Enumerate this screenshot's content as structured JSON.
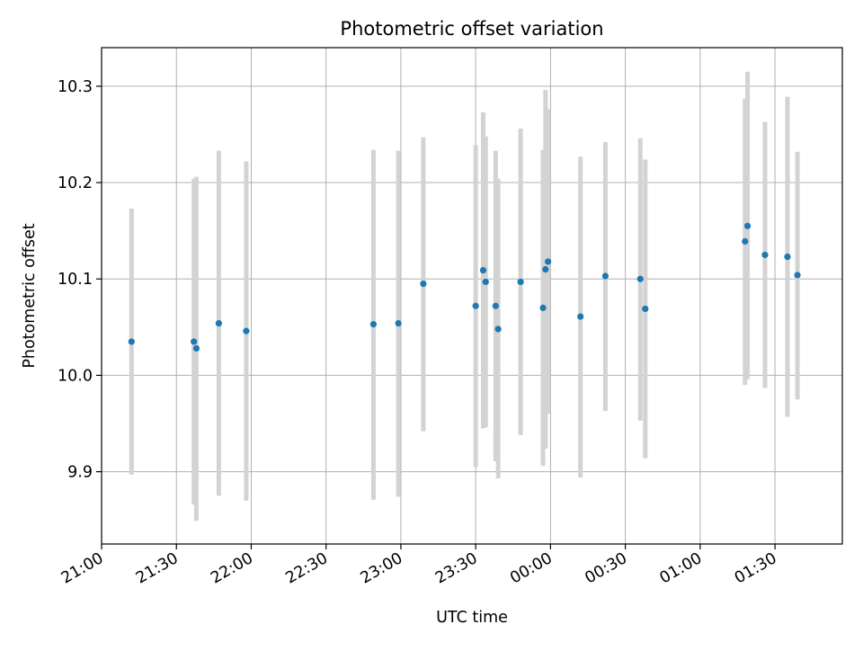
{
  "chart_data": {
    "type": "scatter",
    "title": "Photometric offset variation",
    "xlabel": "UTC time",
    "ylabel": "Photometric offset",
    "x_axis": {
      "start": "21:00",
      "end": "01:57",
      "tick_labels": [
        "21:00",
        "21:30",
        "22:00",
        "22:30",
        "23:00",
        "23:30",
        "00:00",
        "00:30",
        "01:00",
        "01:30"
      ]
    },
    "y_axis": {
      "min": 9.825,
      "max": 10.34,
      "tick_labels": [
        "9.9",
        "10.0",
        "10.1",
        "10.2",
        "10.3"
      ]
    },
    "grid": true,
    "colors": {
      "point": "#1f77b4",
      "errorbar": "#d3d3d3",
      "grid": "#b0b0b0"
    },
    "series": [
      {
        "points": [
          {
            "x": "21:12",
            "y": 10.035,
            "low": 9.897,
            "high": 10.173
          },
          {
            "x": "21:37",
            "y": 10.035,
            "low": 9.866,
            "high": 10.204
          },
          {
            "x": "21:38",
            "y": 10.028,
            "low": 9.849,
            "high": 10.206
          },
          {
            "x": "21:47",
            "y": 10.054,
            "low": 9.875,
            "high": 10.233
          },
          {
            "x": "21:58",
            "y": 10.046,
            "low": 9.87,
            "high": 10.222
          },
          {
            "x": "22:49",
            "y": 10.053,
            "low": 9.871,
            "high": 10.234
          },
          {
            "x": "22:59",
            "y": 10.054,
            "low": 9.874,
            "high": 10.233
          },
          {
            "x": "23:09",
            "y": 10.095,
            "low": 9.942,
            "high": 10.247
          },
          {
            "x": "23:30",
            "y": 10.072,
            "low": 9.905,
            "high": 10.239
          },
          {
            "x": "23:33",
            "y": 10.109,
            "low": 9.945,
            "high": 10.273
          },
          {
            "x": "23:34",
            "y": 10.097,
            "low": 9.946,
            "high": 10.248
          },
          {
            "x": "23:38",
            "y": 10.072,
            "low": 9.911,
            "high": 10.233
          },
          {
            "x": "23:39",
            "y": 10.048,
            "low": 9.893,
            "high": 10.204
          },
          {
            "x": "23:48",
            "y": 10.097,
            "low": 9.938,
            "high": 10.256
          },
          {
            "x": "23:57",
            "y": 10.07,
            "low": 9.906,
            "high": 10.234
          },
          {
            "x": "23:58",
            "y": 10.11,
            "low": 9.924,
            "high": 10.296
          },
          {
            "x": "23:59",
            "y": 10.118,
            "low": 9.96,
            "high": 10.276
          },
          {
            "x": "00:12",
            "y": 10.061,
            "low": 9.894,
            "high": 10.227
          },
          {
            "x": "00:22",
            "y": 10.103,
            "low": 9.963,
            "high": 10.242
          },
          {
            "x": "00:36",
            "y": 10.1,
            "low": 9.953,
            "high": 10.246
          },
          {
            "x": "00:38",
            "y": 10.069,
            "low": 9.914,
            "high": 10.224
          },
          {
            "x": "01:18",
            "y": 10.139,
            "low": 9.99,
            "high": 10.287
          },
          {
            "x": "01:19",
            "y": 10.155,
            "low": 9.996,
            "high": 10.315
          },
          {
            "x": "01:26",
            "y": 10.125,
            "low": 9.987,
            "high": 10.263
          },
          {
            "x": "01:35",
            "y": 10.123,
            "low": 9.957,
            "high": 10.289
          },
          {
            "x": "01:39",
            "y": 10.104,
            "low": 9.975,
            "high": 10.232
          }
        ]
      }
    ]
  }
}
